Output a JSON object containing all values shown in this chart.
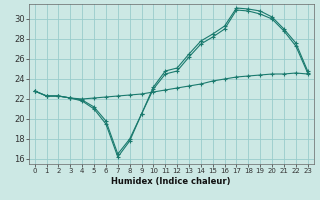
{
  "xlabel": "Humidex (Indice chaleur)",
  "background_color": "#cce8e4",
  "grid_color": "#99cccc",
  "line_color": "#1a7a6e",
  "xlim": [
    -0.5,
    23.5
  ],
  "ylim": [
    15.5,
    31.5
  ],
  "yticks": [
    16,
    18,
    20,
    22,
    24,
    26,
    28,
    30
  ],
  "xticks": [
    0,
    1,
    2,
    3,
    4,
    5,
    6,
    7,
    8,
    9,
    10,
    11,
    12,
    13,
    14,
    15,
    16,
    17,
    18,
    19,
    20,
    21,
    22,
    23
  ],
  "series": [
    {
      "x": [
        0,
        1,
        2,
        3,
        4,
        5,
        6,
        7,
        8,
        9,
        10,
        11,
        12,
        13,
        14,
        15,
        16,
        17,
        18,
        19,
        20,
        21,
        22,
        23
      ],
      "y": [
        22.8,
        22.3,
        22.3,
        22.1,
        21.8,
        21.0,
        19.5,
        16.2,
        17.8,
        20.5,
        23.2,
        24.8,
        25.1,
        26.5,
        27.8,
        28.5,
        29.3,
        31.1,
        31.0,
        30.8,
        30.2,
        29.0,
        27.6,
        24.8
      ]
    },
    {
      "x": [
        0,
        1,
        2,
        3,
        4,
        5,
        6,
        7,
        8,
        9,
        10,
        11,
        12,
        13,
        14,
        15,
        16,
        17,
        18,
        19,
        20,
        21,
        22,
        23
      ],
      "y": [
        22.8,
        22.3,
        22.3,
        22.1,
        21.9,
        21.2,
        19.8,
        16.5,
        18.0,
        20.5,
        23.0,
        24.5,
        24.8,
        26.2,
        27.5,
        28.2,
        29.0,
        30.9,
        30.8,
        30.5,
        30.0,
        28.8,
        27.3,
        24.6
      ]
    },
    {
      "x": [
        0,
        1,
        2,
        3,
        4,
        5,
        6,
        7,
        8,
        9,
        10,
        11,
        12,
        13,
        14,
        15,
        16,
        17,
        18,
        19,
        20,
        21,
        22,
        23
      ],
      "y": [
        22.8,
        22.3,
        22.3,
        22.1,
        22.0,
        22.1,
        22.2,
        22.3,
        22.4,
        22.5,
        22.7,
        22.9,
        23.1,
        23.3,
        23.5,
        23.8,
        24.0,
        24.2,
        24.3,
        24.4,
        24.5,
        24.5,
        24.6,
        24.5
      ]
    }
  ]
}
